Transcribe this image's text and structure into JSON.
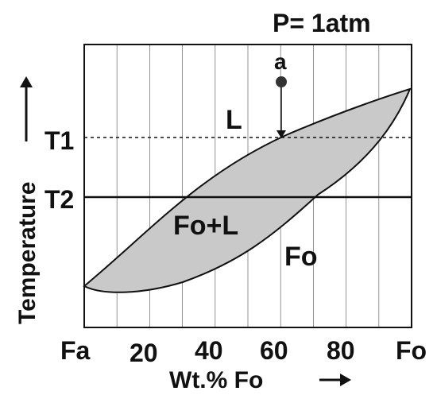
{
  "title": "P= 1atm",
  "y_axis_label": "Temperature",
  "x_axis_label": "Wt.% Fo",
  "x_tick_labels": [
    "Fa",
    "20",
    "40",
    "60",
    "80",
    "Fo"
  ],
  "x_range": [
    0,
    100
  ],
  "vertical_grid_step": 10,
  "isotherms": [
    {
      "label": "T1",
      "style": "dashed",
      "level": 0.585
    },
    {
      "label": "T2",
      "style": "solid",
      "level": 0.425
    }
  ],
  "point": {
    "label": "a",
    "composition": 60
  },
  "regions": {
    "liquid": "L",
    "two_phase": "Fo+L",
    "solid": "Fo"
  },
  "colors": {
    "two_phase_fill": "#c9c9c9",
    "line": "#111111"
  }
}
